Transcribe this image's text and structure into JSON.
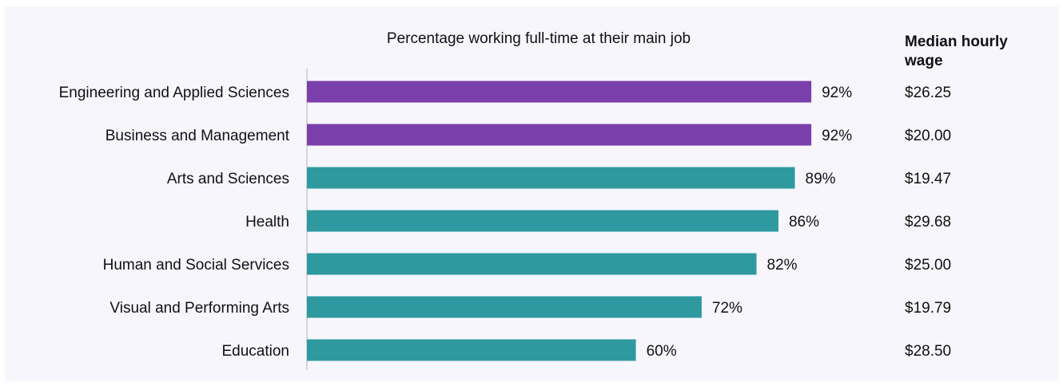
{
  "chart_data": {
    "type": "bar",
    "orientation": "horizontal",
    "title": "Percentage working full-time at their main job",
    "categories": [
      "Engineering and Applied Sciences",
      "Business and Management",
      "Arts and Sciences",
      "Health",
      "Human and Social Services",
      "Visual and Performing Arts",
      "Education"
    ],
    "values": [
      92,
      92,
      89,
      86,
      82,
      72,
      60
    ],
    "value_labels": [
      "92%",
      "92%",
      "89%",
      "86%",
      "82%",
      "72%",
      "60%"
    ],
    "xlim": [
      0,
      100
    ],
    "grid": false,
    "legend": "none",
    "colors": {
      "highlight": "#7b3fab",
      "default": "#2e9aa0",
      "axis": "#c8c8d0"
    },
    "highlighted": [
      true,
      true,
      false,
      false,
      false,
      false,
      false
    ],
    "wage_table": {
      "header_line1": "Median hourly",
      "header_line2": "wage",
      "values": [
        "$26.25",
        "$20.00",
        "$19.47",
        "$29.68",
        "$25.00",
        "$19.79",
        "$28.50"
      ]
    }
  }
}
